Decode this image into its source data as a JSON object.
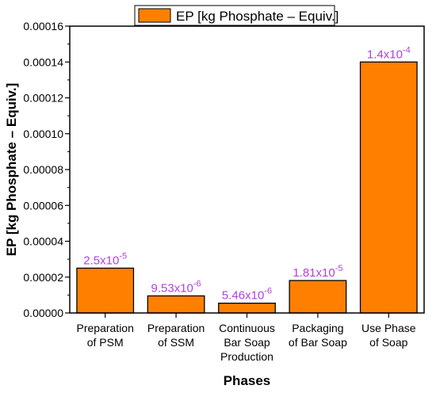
{
  "chart_data": {
    "type": "bar",
    "categories": [
      [
        "Preparation",
        "of PSM"
      ],
      [
        "Preparation",
        "of SSM"
      ],
      [
        "Continuous",
        "Bar Soap",
        "Production"
      ],
      [
        "Packaging",
        "of Bar Soap"
      ],
      [
        "Use Phase",
        "of Soap"
      ]
    ],
    "series": [
      {
        "name": "EP [kg Phosphate – Equiv.]",
        "values": [
          2.5e-05,
          9.53e-06,
          5.46e-06,
          1.81e-05,
          0.00014
        ]
      }
    ],
    "data_labels": [
      {
        "base": "2.5x10",
        "exp": "-5"
      },
      {
        "base": "9.53x10",
        "exp": "-6"
      },
      {
        "base": "5.46x10",
        "exp": "-6"
      },
      {
        "base": "1.81x10",
        "exp": "-5"
      },
      {
        "base": "1.4x10",
        "exp": "-4"
      }
    ],
    "xlabel": "Phases",
    "ylabel": "EP [kg Phosphate – Equiv.]",
    "ylim": [
      0,
      0.00016
    ],
    "yticks": [
      "0.00000",
      "0.00002",
      "0.00004",
      "0.00006",
      "0.00008",
      "0.00010",
      "0.00012",
      "0.00014",
      "0.00016"
    ],
    "legend_position": "top",
    "grid": false,
    "colors": {
      "bar": "#ff8000",
      "bar_edge": "#000000",
      "data_label": "#b23fe0",
      "axis": "#000000"
    }
  }
}
